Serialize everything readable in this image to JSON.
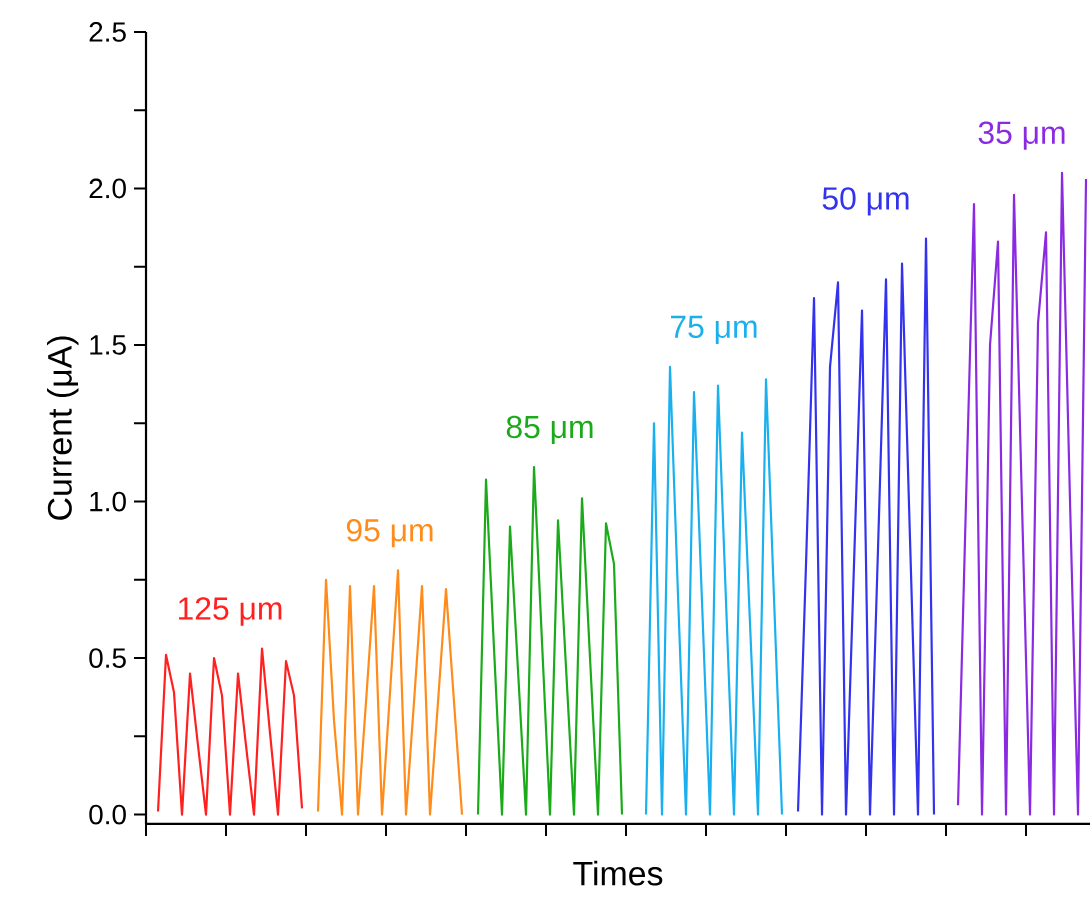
{
  "chart_data": {
    "type": "line",
    "xlabel": "Times",
    "ylabel": "Current (μA)",
    "ylim": [
      -0.03,
      2.5
    ],
    "tick_labels": "y",
    "yticks": [
      {
        "value": 0,
        "label": "0.0"
      },
      {
        "value": 0.25,
        "label": null
      },
      {
        "value": 0.5,
        "label": "0.5"
      },
      {
        "value": 0.75,
        "label": null
      },
      {
        "value": 1,
        "label": "1.0"
      },
      {
        "value": 1.25,
        "label": null
      },
      {
        "value": 1.5,
        "label": "1.5"
      },
      {
        "value": 1.75,
        "label": null
      },
      {
        "value": 2,
        "label": "2.0"
      },
      {
        "value": 2.25,
        "label": null
      },
      {
        "value": 2.5,
        "label": "2.5"
      }
    ],
    "categories": [
      null,
      null,
      null,
      null,
      null,
      null,
      null,
      null,
      null,
      null,
      null,
      null,
      null,
      null,
      null,
      null,
      null,
      null,
      null,
      null,
      null,
      null,
      null,
      null,
      null,
      null,
      null,
      null,
      null,
      null,
      null,
      null,
      null,
      null,
      null,
      null,
      null,
      null,
      null,
      null,
      null,
      null,
      null,
      null,
      null,
      null,
      null,
      null,
      null,
      null,
      null,
      null,
      null,
      null,
      null,
      null,
      null,
      null,
      null,
      null,
      null,
      null,
      null,
      null,
      null,
      null,
      null,
      null,
      null,
      null,
      null,
      null,
      null,
      null,
      null,
      null,
      null,
      null,
      null,
      null,
      null,
      null,
      null,
      null,
      null,
      null,
      null,
      null,
      null,
      null,
      null,
      null,
      null,
      null,
      null,
      null,
      null,
      null,
      null,
      null,
      null,
      null,
      null,
      null,
      null,
      null,
      null,
      null,
      null,
      null,
      null,
      null,
      null,
      null,
      null,
      null,
      null,
      null
    ],
    "series": [
      {
        "name": "125 μm",
        "color": "#ff2020",
        "values": [
          null,
          0.01,
          0.51,
          0.39,
          0,
          0.45,
          0.22,
          0,
          0.5,
          0.38,
          0,
          0.45,
          0.22,
          0,
          0.53,
          0.26,
          0,
          0.49,
          0.38,
          0.02,
          null,
          null,
          null,
          null,
          null,
          null,
          null,
          null,
          null,
          null,
          null,
          null,
          null,
          null,
          null,
          null,
          null,
          null,
          null,
          null,
          null,
          null,
          null,
          null,
          null,
          null,
          null,
          null,
          null,
          null,
          null,
          null,
          null,
          null,
          null,
          null,
          null,
          null,
          null,
          null,
          null,
          null,
          null,
          null,
          null,
          null,
          null,
          null,
          null,
          null,
          null,
          null,
          null,
          null,
          null,
          null,
          null,
          null,
          null,
          null,
          null,
          null,
          null,
          null,
          null,
          null,
          null,
          null,
          null,
          null,
          null,
          null,
          null,
          null,
          null,
          null,
          null,
          null,
          null,
          null,
          null,
          null,
          null,
          null,
          null,
          null,
          null,
          null,
          null,
          null,
          null,
          null,
          null,
          null,
          null,
          null,
          null,
          null
        ]
      },
      {
        "name": "95 μm",
        "color": "#ff8c1a",
        "values": [
          null,
          null,
          null,
          null,
          null,
          null,
          null,
          null,
          null,
          null,
          null,
          null,
          null,
          null,
          null,
          null,
          null,
          null,
          null,
          null,
          null,
          0.01,
          0.75,
          0.3,
          0,
          0.73,
          0,
          0.36,
          0.73,
          0,
          0.39,
          0.78,
          0,
          0.36,
          0.73,
          0,
          0.36,
          0.72,
          0.36,
          0,
          null,
          null,
          null,
          null,
          null,
          null,
          null,
          null,
          null,
          null,
          null,
          null,
          null,
          null,
          null,
          null,
          null,
          null,
          null,
          null,
          null,
          null,
          null,
          null,
          null,
          null,
          null,
          null,
          null,
          null,
          null,
          null,
          null,
          null,
          null,
          null,
          null,
          null,
          null,
          null,
          null,
          null,
          null,
          null,
          null,
          null,
          null,
          null,
          null,
          null,
          null,
          null,
          null,
          null,
          null,
          null,
          null,
          null,
          null,
          null,
          null,
          null,
          null,
          null,
          null,
          null,
          null,
          null,
          null,
          null,
          null,
          null,
          null,
          null,
          null,
          null,
          null,
          null
        ]
      },
      {
        "name": "85 μm",
        "color": "#1aaa1a",
        "values": [
          null,
          null,
          null,
          null,
          null,
          null,
          null,
          null,
          null,
          null,
          null,
          null,
          null,
          null,
          null,
          null,
          null,
          null,
          null,
          null,
          null,
          null,
          null,
          null,
          null,
          null,
          null,
          null,
          null,
          null,
          null,
          null,
          null,
          null,
          null,
          null,
          null,
          null,
          null,
          null,
          null,
          0,
          1.07,
          0.53,
          0,
          0.92,
          0.46,
          0,
          1.11,
          0.55,
          0,
          0.94,
          0.47,
          0,
          1.01,
          0.5,
          0,
          0.93,
          0.8,
          0,
          null,
          null,
          null,
          null,
          null,
          null,
          null,
          null,
          null,
          null,
          null,
          null,
          null,
          null,
          null,
          null,
          null,
          null,
          null,
          null,
          null,
          null,
          null,
          null,
          null,
          null,
          null,
          null,
          null,
          null,
          null,
          null,
          null,
          null,
          null,
          null,
          null,
          null,
          null,
          null,
          null,
          null,
          null,
          null,
          null,
          null,
          null,
          null,
          null,
          null,
          null,
          null,
          null,
          null,
          null,
          null,
          null,
          null
        ]
      },
      {
        "name": "75 μm",
        "color": "#1ab0ee",
        "values": [
          null,
          null,
          null,
          null,
          null,
          null,
          null,
          null,
          null,
          null,
          null,
          null,
          null,
          null,
          null,
          null,
          null,
          null,
          null,
          null,
          null,
          null,
          null,
          null,
          null,
          null,
          null,
          null,
          null,
          null,
          null,
          null,
          null,
          null,
          null,
          null,
          null,
          null,
          null,
          null,
          null,
          null,
          null,
          null,
          null,
          null,
          null,
          null,
          null,
          null,
          null,
          null,
          null,
          null,
          null,
          null,
          null,
          null,
          null,
          null,
          null,
          null,
          0,
          1.25,
          0,
          1.43,
          0.7,
          0,
          1.35,
          0.68,
          0,
          1.37,
          0.68,
          0,
          1.22,
          0.61,
          0,
          1.39,
          0.69,
          0,
          null,
          null,
          null,
          null,
          null,
          null,
          null,
          null,
          null,
          null,
          null,
          null,
          null,
          null,
          null,
          null,
          null,
          null,
          null,
          null,
          null,
          null,
          null,
          null,
          null,
          null,
          null,
          null,
          null,
          null,
          null,
          null,
          null,
          null,
          null,
          null,
          null,
          null
        ]
      },
      {
        "name": "50 μm",
        "color": "#3333ee",
        "values": [
          null,
          null,
          null,
          null,
          null,
          null,
          null,
          null,
          null,
          null,
          null,
          null,
          null,
          null,
          null,
          null,
          null,
          null,
          null,
          null,
          null,
          null,
          null,
          null,
          null,
          null,
          null,
          null,
          null,
          null,
          null,
          null,
          null,
          null,
          null,
          null,
          null,
          null,
          null,
          null,
          null,
          null,
          null,
          null,
          null,
          null,
          null,
          null,
          null,
          null,
          null,
          null,
          null,
          null,
          null,
          null,
          null,
          null,
          null,
          null,
          null,
          null,
          null,
          null,
          null,
          null,
          null,
          null,
          null,
          null,
          null,
          null,
          null,
          null,
          null,
          null,
          null,
          null,
          null,
          null,
          null,
          0.01,
          0.8,
          1.65,
          0,
          1.43,
          1.7,
          0,
          0.8,
          1.61,
          0,
          0.85,
          1.71,
          0,
          1.76,
          0.88,
          0,
          1.84,
          0,
          null,
          null,
          null,
          null,
          null,
          null,
          null,
          null,
          null,
          null,
          null,
          null,
          null,
          null,
          null,
          null,
          null,
          null,
          null
        ]
      },
      {
        "name": "35 μm",
        "color": "#8a2be2",
        "values": [
          null,
          null,
          null,
          null,
          null,
          null,
          null,
          null,
          null,
          null,
          null,
          null,
          null,
          null,
          null,
          null,
          null,
          null,
          null,
          null,
          null,
          null,
          null,
          null,
          null,
          null,
          null,
          null,
          null,
          null,
          null,
          null,
          null,
          null,
          null,
          null,
          null,
          null,
          null,
          null,
          null,
          null,
          null,
          null,
          null,
          null,
          null,
          null,
          null,
          null,
          null,
          null,
          null,
          null,
          null,
          null,
          null,
          null,
          null,
          null,
          null,
          null,
          null,
          null,
          null,
          null,
          null,
          null,
          null,
          null,
          null,
          null,
          null,
          null,
          null,
          null,
          null,
          null,
          null,
          null,
          null,
          null,
          null,
          null,
          null,
          null,
          null,
          null,
          null,
          null,
          null,
          null,
          null,
          null,
          null,
          null,
          null,
          null,
          null,
          null,
          null,
          0.03,
          1.0,
          1.95,
          0,
          1.5,
          1.83,
          0,
          1.98,
          0.99,
          0,
          1.57,
          1.86,
          0,
          2.05,
          1.0,
          0,
          2.03
        ]
      }
    ]
  }
}
